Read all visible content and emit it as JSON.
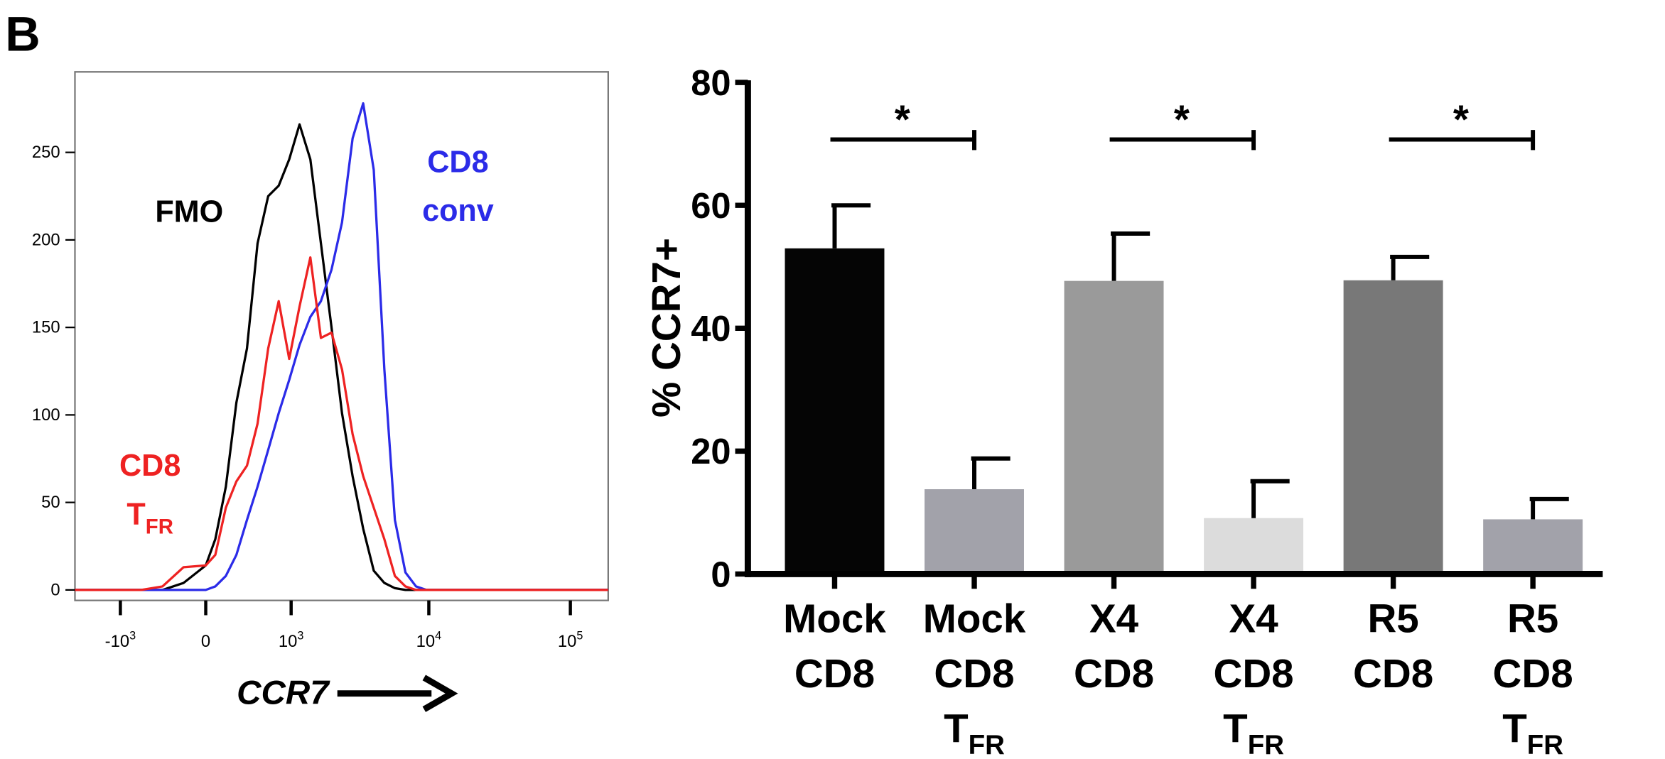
{
  "panel_label": "B",
  "chart_data": [
    {
      "type": "line",
      "x_label": "CCR7",
      "x_scale": "biexponential",
      "x": [
        -2200,
        -665,
        -406,
        -196,
        0,
        83,
        177,
        276,
        384,
        503,
        638,
        790,
        965,
        1165,
        1409,
        1690,
        2022,
        2410,
        2873,
        3421,
        4070,
        4841,
        5751,
        6831,
        8118,
        9645,
        185000
      ],
      "xlim": [
        -2200,
        185000
      ],
      "xticks": [
        {
          "value": -1000,
          "label": [
            "-10",
            "3"
          ]
        },
        0,
        {
          "value": 1000,
          "label": [
            "10",
            "3"
          ]
        },
        {
          "value": 10000,
          "label": [
            "10",
            "4"
          ]
        },
        {
          "value": 100000,
          "label": [
            "10",
            "5"
          ]
        }
      ],
      "ylim": [
        -6,
        296
      ],
      "yticks": [
        0,
        50,
        100,
        150,
        200,
        250
      ],
      "series": [
        {
          "name": [
            "FMO"
          ],
          "color": "#000000",
          "values": [
            0,
            0,
            0,
            4,
            14,
            29,
            59,
            107,
            138,
            198,
            225,
            231,
            246,
            266,
            246,
            198,
            150,
            101,
            65,
            35,
            11,
            4,
            1,
            0,
            0,
            0,
            0
          ]
        },
        {
          "name": [
            "CD8",
            "conv"
          ],
          "color": "#2b2be8",
          "values": [
            0,
            0,
            0,
            0,
            0,
            2,
            8,
            20,
            40,
            59,
            80,
            101,
            120,
            140,
            156,
            165,
            183,
            210,
            258,
            278,
            240,
            126,
            40,
            10,
            2,
            0,
            0
          ]
        },
        {
          "name": [
            "CD8",
            [
              "T",
              "FR"
            ]
          ],
          "color": "#ee2222",
          "values": [
            0,
            0,
            2,
            13,
            14,
            20,
            47,
            62,
            71,
            95,
            138,
            165,
            132,
            162,
            190,
            144,
            147,
            126,
            89,
            65,
            47,
            29,
            8,
            2,
            0,
            0,
            0
          ]
        }
      ]
    },
    {
      "type": "bar",
      "y_label": "% CCR7+",
      "categories": [
        [
          "Mock",
          "CD8"
        ],
        [
          "Mock",
          "CD8",
          [
            "T",
            "FR"
          ]
        ],
        [
          "X4",
          "CD8"
        ],
        [
          "X4",
          "CD8",
          [
            "T",
            "FR"
          ]
        ],
        [
          "R5",
          "CD8"
        ],
        [
          "R5",
          "CD8",
          [
            "T",
            "FR"
          ]
        ]
      ],
      "values": [
        53,
        13.8,
        47.7,
        9.1,
        47.8,
        8.9
      ],
      "errors": [
        7,
        5,
        7.7,
        6,
        3.8,
        3.3
      ],
      "colors": [
        "#050505",
        "#a2a2aa",
        "#9a9a9a",
        "#dcdcdc",
        "#787878",
        "#a2a2aa"
      ],
      "ylim": [
        0,
        80
      ],
      "yticks": [
        0,
        20,
        40,
        60,
        80
      ],
      "significance": [
        "*",
        "*",
        "*"
      ]
    }
  ]
}
